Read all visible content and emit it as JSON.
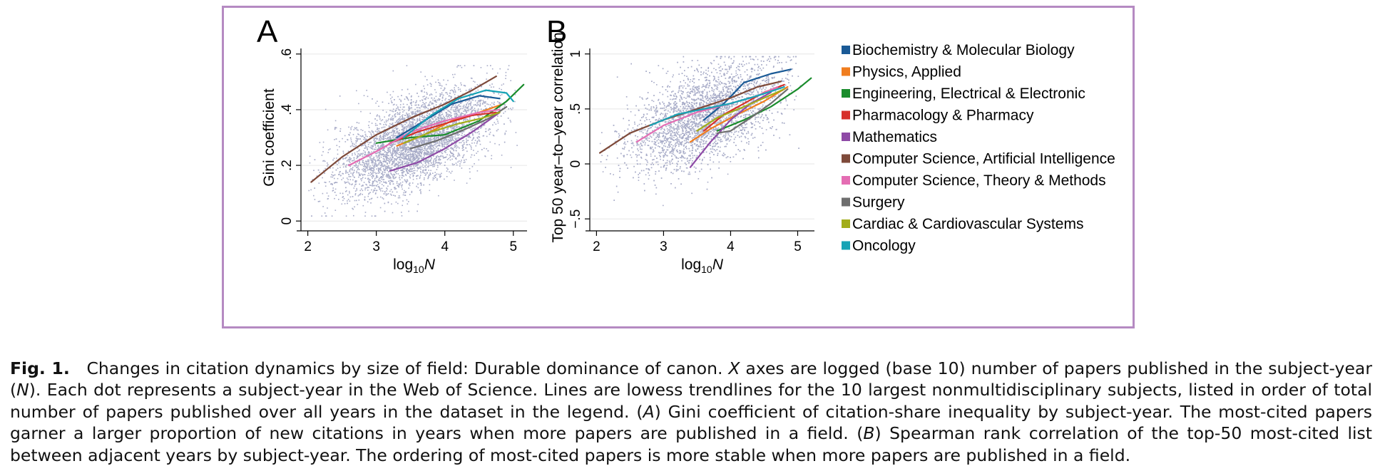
{
  "chart_data": [
    {
      "panel": "A",
      "type": "scatter",
      "xlabel_prefix": "log",
      "xlabel_sub": "10",
      "xlabel_var": "N",
      "ylabel": "Gini coefficient",
      "xlim": [
        1.9,
        5.2
      ],
      "ylim": [
        -0.02,
        0.62
      ],
      "x_ticks": [
        {
          "v": 2,
          "label": "2"
        },
        {
          "v": 3,
          "label": "3"
        },
        {
          "v": 4,
          "label": "4"
        },
        {
          "v": 5,
          "label": "5"
        }
      ],
      "y_ticks": [
        {
          "v": 0,
          "label": "0"
        },
        {
          "v": 0.2,
          "label": ".2"
        },
        {
          "v": 0.4,
          "label": ".4"
        },
        {
          "v": 0.6,
          "label": ".6"
        }
      ],
      "grid": true,
      "scatter": {
        "description_free": true,
        "color": "#a8acc8",
        "x_mean": 3.55,
        "x_sd": 0.55,
        "y_intercept": -0.05,
        "y_slope": 0.095,
        "y_sd": 0.075,
        "n_points": 5000
      },
      "series": [
        {
          "name": "Biochemistry & Molecular Biology",
          "color": "#1a5a96",
          "x": [
            3.3,
            3.7,
            4.1,
            4.5,
            4.8
          ],
          "y": [
            0.3,
            0.36,
            0.42,
            0.45,
            0.44
          ]
        },
        {
          "name": "Physics, Applied",
          "color": "#f07d1e",
          "x": [
            3.3,
            3.7,
            4.1,
            4.5,
            4.85
          ],
          "y": [
            0.27,
            0.31,
            0.36,
            0.39,
            0.42
          ]
        },
        {
          "name": "Engineering, Electrical & Electronic",
          "color": "#1a8c2c",
          "x": [
            3.0,
            3.5,
            4.0,
            4.5,
            4.9,
            5.15
          ],
          "y": [
            0.28,
            0.3,
            0.31,
            0.36,
            0.43,
            0.49
          ]
        },
        {
          "name": "Pharmacology & Pharmacy",
          "color": "#d6302a",
          "x": [
            3.2,
            3.6,
            4.0,
            4.4,
            4.75
          ],
          "y": [
            0.28,
            0.32,
            0.35,
            0.38,
            0.39
          ]
        },
        {
          "name": "Mathematics",
          "color": "#8e4aa6",
          "x": [
            3.2,
            3.6,
            4.0,
            4.4,
            4.8
          ],
          "y": [
            0.18,
            0.21,
            0.26,
            0.32,
            0.39
          ]
        },
        {
          "name": "Computer Science, Artificial Intelligence",
          "color": "#7e4a3a",
          "x": [
            2.05,
            2.5,
            3.0,
            3.5,
            4.0,
            4.4,
            4.75
          ],
          "y": [
            0.14,
            0.23,
            0.31,
            0.37,
            0.42,
            0.47,
            0.52
          ]
        },
        {
          "name": "Computer Science, Theory & Methods",
          "color": "#e46db3",
          "x": [
            2.6,
            3.0,
            3.5,
            4.0,
            4.5,
            4.8
          ],
          "y": [
            0.2,
            0.25,
            0.32,
            0.36,
            0.39,
            0.4
          ]
        },
        {
          "name": "Surgery",
          "color": "#6e6e6e",
          "x": [
            3.5,
            3.9,
            4.3,
            4.65,
            4.9
          ],
          "y": [
            0.26,
            0.29,
            0.33,
            0.37,
            0.41
          ]
        },
        {
          "name": "Cardiac & Cardiovascular Systems",
          "color": "#a2ad1a",
          "x": [
            3.4,
            3.8,
            4.2,
            4.55,
            4.8
          ],
          "y": [
            0.28,
            0.32,
            0.35,
            0.37,
            0.39
          ]
        },
        {
          "name": "Oncology",
          "color": "#17a3b5",
          "x": [
            3.4,
            3.8,
            4.2,
            4.6,
            4.9,
            5.0
          ],
          "y": [
            0.3,
            0.38,
            0.44,
            0.47,
            0.46,
            0.43
          ]
        }
      ]
    },
    {
      "panel": "B",
      "type": "scatter",
      "xlabel_prefix": "log",
      "xlabel_sub": "10",
      "xlabel_var": "N",
      "ylabel": "Top 50 year–to–year correlation",
      "xlim": [
        1.9,
        5.25
      ],
      "ylim": [
        -0.57,
        1.05
      ],
      "x_ticks": [
        {
          "v": 2,
          "label": "2"
        },
        {
          "v": 3,
          "label": "3"
        },
        {
          "v": 4,
          "label": "4"
        },
        {
          "v": 5,
          "label": "5"
        }
      ],
      "y_ticks": [
        {
          "v": -0.5,
          "label": "−.5"
        },
        {
          "v": 0,
          "label": "0"
        },
        {
          "v": 0.5,
          "label": ".5"
        },
        {
          "v": 1,
          "label": "1"
        }
      ],
      "grid": true,
      "scatter": {
        "color": "#a8acc8",
        "x_mean": 3.6,
        "x_sd": 0.55,
        "y_intercept": -0.35,
        "y_slope": 0.22,
        "y_sd": 0.2,
        "n_points": 5000
      },
      "series": [
        {
          "name": "Biochemistry & Molecular Biology",
          "color": "#1a5a96",
          "x": [
            3.6,
            3.9,
            4.2,
            4.6,
            4.9
          ],
          "y": [
            0.4,
            0.55,
            0.74,
            0.82,
            0.86
          ]
        },
        {
          "name": "Physics, Applied",
          "color": "#f07d1e",
          "x": [
            3.4,
            3.7,
            4.1,
            4.5,
            4.85
          ],
          "y": [
            0.2,
            0.32,
            0.45,
            0.57,
            0.7
          ]
        },
        {
          "name": "Engineering, Electrical & Electronic",
          "color": "#1a8c2c",
          "x": [
            3.8,
            4.2,
            4.6,
            5.0,
            5.2
          ],
          "y": [
            0.3,
            0.4,
            0.52,
            0.68,
            0.78
          ]
        },
        {
          "name": "Pharmacology & Pharmacy",
          "color": "#d6302a",
          "x": [
            3.6,
            3.9,
            4.2,
            4.5,
            4.8
          ],
          "y": [
            0.3,
            0.45,
            0.55,
            0.65,
            0.72
          ]
        },
        {
          "name": "Mathematics",
          "color": "#8e4aa6",
          "x": [
            3.4,
            3.7,
            4.0,
            4.3,
            4.6
          ],
          "y": [
            -0.03,
            0.2,
            0.4,
            0.55,
            0.65
          ]
        },
        {
          "name": "Computer Science, Artificial Intelligence",
          "color": "#7e4a3a",
          "x": [
            2.05,
            2.5,
            3.0,
            3.5,
            4.0,
            4.4,
            4.75
          ],
          "y": [
            0.1,
            0.28,
            0.4,
            0.5,
            0.6,
            0.7,
            0.75
          ]
        },
        {
          "name": "Computer Science, Theory & Methods",
          "color": "#e46db3",
          "x": [
            2.6,
            3.0,
            3.5,
            4.0,
            4.4,
            4.7
          ],
          "y": [
            0.2,
            0.35,
            0.47,
            0.55,
            0.62,
            0.7
          ]
        },
        {
          "name": "Surgery",
          "color": "#6e6e6e",
          "x": [
            3.8,
            4.0,
            4.3,
            4.6,
            4.85
          ],
          "y": [
            0.28,
            0.3,
            0.42,
            0.55,
            0.68
          ]
        },
        {
          "name": "Cardiac & Cardiovascular Systems",
          "color": "#a2ad1a",
          "x": [
            3.5,
            3.8,
            4.2,
            4.5,
            4.8
          ],
          "y": [
            0.3,
            0.42,
            0.52,
            0.6,
            0.68
          ]
        },
        {
          "name": "Oncology",
          "color": "#17a3b5",
          "x": [
            2.8,
            3.2,
            3.6,
            4.0,
            4.4,
            4.8
          ],
          "y": [
            0.35,
            0.45,
            0.5,
            0.55,
            0.62,
            0.7
          ]
        }
      ]
    }
  ],
  "legend": {
    "placement": "right",
    "items": [
      {
        "label": "Biochemistry & Molecular Biology",
        "color": "#1a5a96"
      },
      {
        "label": "Physics, Applied",
        "color": "#f07d1e"
      },
      {
        "label": "Engineering, Electrical & Electronic",
        "color": "#1a8c2c"
      },
      {
        "label": "Pharmacology & Pharmacy",
        "color": "#d6302a"
      },
      {
        "label": "Mathematics",
        "color": "#8e4aa6"
      },
      {
        "label": "Computer Science, Artificial Intelligence",
        "color": "#7e4a3a"
      },
      {
        "label": "Computer Science, Theory & Methods",
        "color": "#e46db3"
      },
      {
        "label": "Surgery",
        "color": "#6e6e6e"
      },
      {
        "label": "Cardiac & Cardiovascular Systems",
        "color": "#a2ad1a"
      },
      {
        "label": "Oncology",
        "color": "#17a3b5"
      }
    ]
  },
  "colors": {
    "frame_border": "#b58ac2",
    "grid": "#e6e6e6",
    "scatter": "#a8acc8"
  },
  "caption": {
    "label": "Fig. 1.",
    "segments": [
      {
        "t": "Changes in citation dynamics by size of field: Durable dominance of canon. "
      },
      {
        "t": "X",
        "i": true
      },
      {
        "t": " axes are logged (base 10) number of papers published in the subject-year ("
      },
      {
        "t": "N",
        "i": true
      },
      {
        "t": "). Each dot represents a subject-year in the Web of Science. Lines are lowess trendlines for the 10 largest nonmultidisciplinary subjects, listed in order of total number of papers published over all years in the dataset in the legend. ("
      },
      {
        "t": "A",
        "i": true
      },
      {
        "t": ") Gini coefficient of citation-share inequality by subject-year. The most-cited papers garner a larger proportion of new citations in years when more papers are published in a field. ("
      },
      {
        "t": "B",
        "i": true
      },
      {
        "t": ") Spearman rank correlation of the top-50 most-cited list between adjacent years by subject-year. The ordering of most-cited papers is more stable when more papers are published in a field."
      }
    ]
  }
}
